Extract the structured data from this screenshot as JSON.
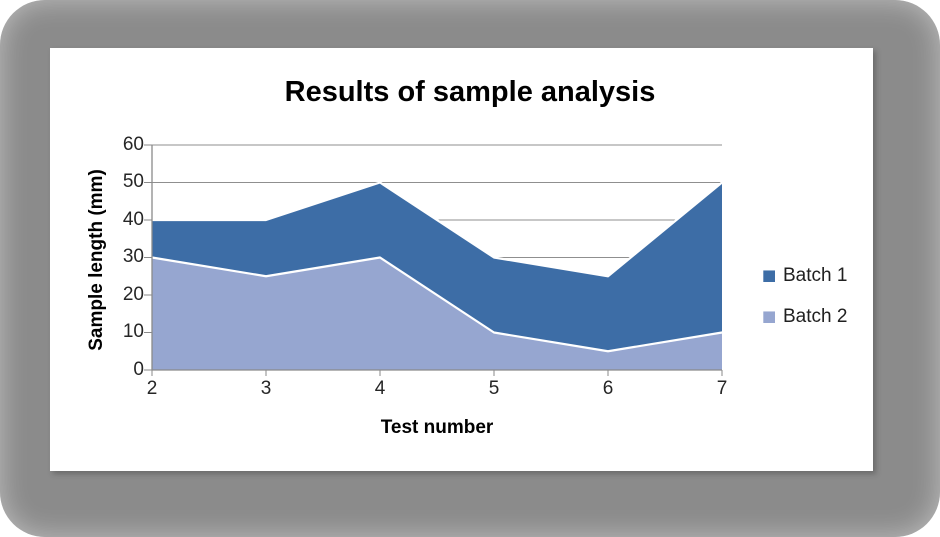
{
  "frame": {
    "background_color": "#8b8b8b",
    "card_color": "#ffffff"
  },
  "chart_data": {
    "type": "area",
    "title": "Results of sample analysis",
    "xlabel": "Test number",
    "ylabel": "Sample length (mm)",
    "x": [
      2,
      3,
      4,
      5,
      6,
      7
    ],
    "xticks": [
      2,
      3,
      4,
      5,
      6,
      7
    ],
    "xlim": [
      2,
      7
    ],
    "ylim": [
      0,
      60
    ],
    "yticks": [
      60,
      50,
      40,
      30,
      20,
      10,
      0
    ],
    "grid": "horizontal gridlines every 10, drawn behind areas",
    "legend_position": "right",
    "series": [
      {
        "name": "Batch 1",
        "values": [
          40,
          40,
          50,
          30,
          25,
          50
        ],
        "color": "#3d6da6"
      },
      {
        "name": "Batch 2",
        "values": [
          30,
          25,
          30,
          10,
          5,
          10
        ],
        "color": "#96a6d0"
      }
    ],
    "series_overlap": "overlapping areas, Batch 2 drawn in front of Batch 1, white edge line on area tops"
  },
  "style_colors": {
    "gridline": "#8f8f8f",
    "axis": "#8a8a8a",
    "tick_text": "#262626",
    "title_text": "#000000"
  }
}
